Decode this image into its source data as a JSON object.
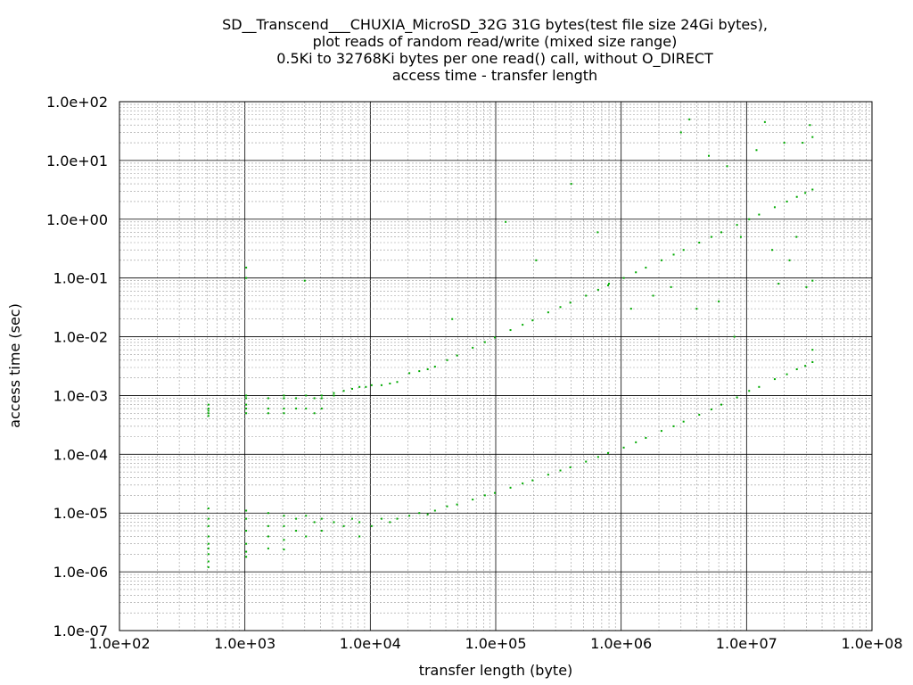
{
  "chart_data": {
    "type": "scatter",
    "title": [
      "SD__Transcend___CHUXIA_MicroSD_32G 31G bytes(test file size 24Gi bytes),",
      "plot reads of random read/write (mixed size range)",
      "0.5Ki to 32768Ki bytes per one read() call, without O_DIRECT",
      "access time - transfer length"
    ],
    "xlabel": "transfer length (byte)",
    "ylabel": "access time (sec)",
    "xscale": "log",
    "yscale": "log",
    "xlim": [
      100,
      100000000
    ],
    "ylim": [
      1e-07,
      100
    ],
    "x_tick_labels": [
      "1.0e+02",
      "1.0e+03",
      "1.0e+04",
      "1.0e+05",
      "1.0e+06",
      "1.0e+07",
      "1.0e+08"
    ],
    "y_tick_labels": [
      "1.0e+02",
      "1.0e+01",
      "1.0e+00",
      "1.0e-01",
      "1.0e-02",
      "1.0e-03",
      "1.0e-04",
      "1.0e-05",
      "1.0e-06",
      "1.0e-07"
    ],
    "grid": true,
    "point_color": "#00aa00",
    "series": [
      {
        "points": [
          [
            512,
            0.0006
          ],
          [
            512,
            0.0005
          ],
          [
            512,
            0.0007
          ],
          [
            512,
            0.00055
          ],
          [
            512,
            0.00045
          ],
          [
            1024,
            0.001
          ],
          [
            1024,
            0.0009
          ],
          [
            1024,
            0.0007
          ],
          [
            1024,
            0.0006
          ],
          [
            1024,
            0.0005
          ],
          [
            1024,
            0.1
          ],
          [
            1024,
            0.15
          ],
          [
            1536,
            0.0009
          ],
          [
            1536,
            0.0006
          ],
          [
            1536,
            0.0005
          ],
          [
            2048,
            0.001
          ],
          [
            2048,
            0.0009
          ],
          [
            2048,
            0.0006
          ],
          [
            2048,
            0.0005
          ],
          [
            2560,
            0.0009
          ],
          [
            2560,
            0.0006
          ],
          [
            3072,
            0.001
          ],
          [
            3072,
            0.0006
          ],
          [
            3584,
            0.0009
          ],
          [
            3584,
            0.0005
          ],
          [
            4096,
            0.001
          ],
          [
            4096,
            0.0009
          ],
          [
            5120,
            0.001
          ],
          [
            5120,
            0.0011
          ],
          [
            6144,
            0.0012
          ],
          [
            7168,
            0.0013
          ],
          [
            8192,
            0.0014
          ],
          [
            9216,
            0.0014
          ],
          [
            10240,
            0.0015
          ],
          [
            12288,
            0.0015
          ],
          [
            14336,
            0.0016
          ],
          [
            16384,
            0.0017
          ],
          [
            20480,
            0.0024
          ],
          [
            24576,
            0.0026
          ],
          [
            28672,
            0.0028
          ],
          [
            32768,
            0.0031
          ],
          [
            40960,
            0.004
          ],
          [
            49152,
            0.0048
          ],
          [
            65536,
            0.0065
          ],
          [
            81920,
            0.0081
          ],
          [
            98304,
            0.0097
          ],
          [
            131072,
            0.013
          ],
          [
            163840,
            0.016
          ],
          [
            196608,
            0.019
          ],
          [
            262144,
            0.026
          ],
          [
            327680,
            0.032
          ],
          [
            393216,
            0.038
          ],
          [
            524288,
            0.05
          ],
          [
            655360,
            0.063
          ],
          [
            786432,
            0.075
          ],
          [
            1048576,
            0.1
          ],
          [
            1310720,
            0.125
          ],
          [
            1572864,
            0.15
          ],
          [
            2097152,
            0.2
          ],
          [
            2621440,
            0.25
          ],
          [
            3145728,
            0.3
          ],
          [
            4194304,
            0.4
          ],
          [
            5242880,
            0.5
          ],
          [
            6291456,
            0.6
          ],
          [
            8388608,
            0.8
          ],
          [
            10485760,
            1.0
          ],
          [
            12582912,
            1.2
          ],
          [
            16777216,
            1.6
          ],
          [
            20971520,
            2.0
          ],
          [
            25165824,
            2.4
          ],
          [
            29360128,
            2.8
          ],
          [
            33554432,
            3.2
          ],
          [
            4096,
            0.0006
          ],
          [
            3000,
            0.09
          ],
          [
            45000,
            0.02
          ],
          [
            120000,
            0.9
          ],
          [
            210000,
            0.2
          ],
          [
            400000,
            4.0
          ],
          [
            650000,
            0.6
          ],
          [
            800000,
            0.08
          ],
          [
            1200000,
            0.03
          ],
          [
            1800000,
            0.05
          ],
          [
            2500000,
            0.07
          ],
          [
            3000000,
            30
          ],
          [
            3500000,
            50
          ],
          [
            4000000,
            0.03
          ],
          [
            5000000,
            12
          ],
          [
            6000000,
            0.04
          ],
          [
            7000000,
            8
          ],
          [
            8000000,
            0.01
          ],
          [
            9000000,
            0.5
          ],
          [
            12000000,
            15
          ],
          [
            14000000,
            45
          ],
          [
            16000000,
            0.3
          ],
          [
            18000000,
            0.08
          ],
          [
            20000000,
            20
          ],
          [
            22000000,
            0.2
          ],
          [
            25000000,
            0.5
          ],
          [
            28000000,
            20
          ],
          [
            30000000,
            0.07
          ],
          [
            32000000,
            40
          ],
          [
            33554432,
            0.09
          ],
          [
            33554432,
            25
          ]
        ]
      },
      {
        "points": [
          [
            512,
            1.2e-05
          ],
          [
            512,
            8e-06
          ],
          [
            512,
            6e-06
          ],
          [
            512,
            4e-06
          ],
          [
            512,
            3e-06
          ],
          [
            512,
            2.5e-06
          ],
          [
            512,
            2e-06
          ],
          [
            512,
            1.5e-06
          ],
          [
            512,
            1.2e-06
          ],
          [
            1024,
            1.1e-05
          ],
          [
            1024,
            8e-06
          ],
          [
            1024,
            5e-06
          ],
          [
            1024,
            3e-06
          ],
          [
            1024,
            2.2e-06
          ],
          [
            1024,
            1.8e-06
          ],
          [
            1536,
            1e-05
          ],
          [
            1536,
            6e-06
          ],
          [
            1536,
            4e-06
          ],
          [
            1536,
            2.5e-06
          ],
          [
            2048,
            9e-06
          ],
          [
            2048,
            6e-06
          ],
          [
            2048,
            3.5e-06
          ],
          [
            2048,
            2.4e-06
          ],
          [
            2560,
            8e-06
          ],
          [
            2560,
            5e-06
          ],
          [
            3072,
            9e-06
          ],
          [
            3072,
            4e-06
          ],
          [
            3584,
            7e-06
          ],
          [
            4096,
            8e-06
          ],
          [
            4096,
            5e-06
          ],
          [
            5120,
            7e-06
          ],
          [
            6144,
            6e-06
          ],
          [
            7168,
            8e-06
          ],
          [
            8192,
            7e-06
          ],
          [
            8192,
            4e-06
          ],
          [
            10240,
            6e-06
          ],
          [
            12288,
            8e-06
          ],
          [
            14336,
            7e-06
          ],
          [
            16384,
            8e-06
          ],
          [
            20480,
            9e-06
          ],
          [
            24576,
            1e-05
          ],
          [
            28672,
            9.5e-06
          ],
          [
            32768,
            1.1e-05
          ],
          [
            40960,
            1.3e-05
          ],
          [
            49152,
            1.4e-05
          ],
          [
            65536,
            1.7e-05
          ],
          [
            81920,
            2e-05
          ],
          [
            98304,
            2.2e-05
          ],
          [
            131072,
            2.7e-05
          ],
          [
            163840,
            3.2e-05
          ],
          [
            196608,
            3.6e-05
          ],
          [
            262144,
            4.5e-05
          ],
          [
            327680,
            5.3e-05
          ],
          [
            393216,
            6e-05
          ],
          [
            524288,
            7.5e-05
          ],
          [
            655360,
            9e-05
          ],
          [
            786432,
            0.000105
          ],
          [
            1048576,
            0.00013
          ],
          [
            1310720,
            0.00016
          ],
          [
            1572864,
            0.00019
          ],
          [
            2097152,
            0.00025
          ],
          [
            2621440,
            0.0003
          ],
          [
            3145728,
            0.00036
          ],
          [
            4194304,
            0.00047
          ],
          [
            5242880,
            0.00058
          ],
          [
            6291456,
            0.0007
          ],
          [
            8388608,
            0.00093
          ],
          [
            10485760,
            0.0012
          ],
          [
            12582912,
            0.0014
          ],
          [
            16777216,
            0.0019
          ],
          [
            20971520,
            0.0023
          ],
          [
            25165824,
            0.0028
          ],
          [
            29360128,
            0.0032
          ],
          [
            33554432,
            0.0037
          ],
          [
            33554432,
            0.006
          ]
        ]
      }
    ]
  }
}
